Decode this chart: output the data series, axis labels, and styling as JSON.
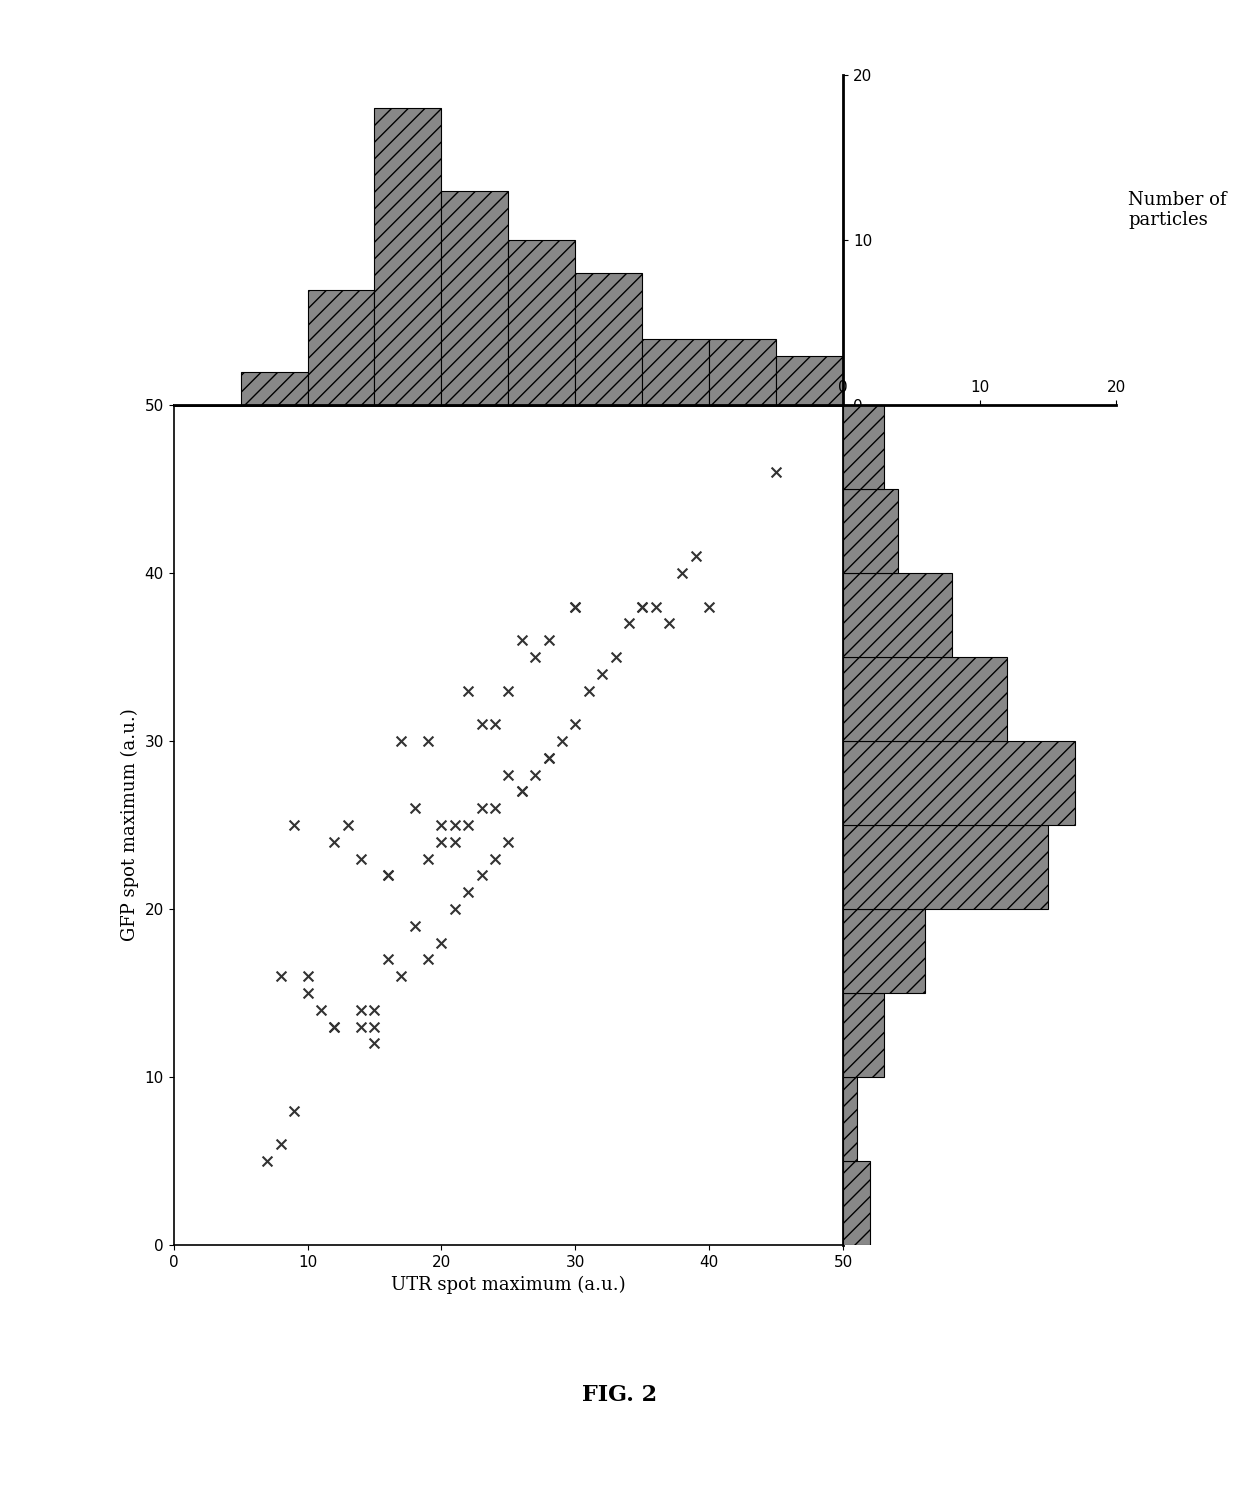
{
  "title": "FIG. 2",
  "xlabel": "UTR spot maximum (a.u.)",
  "ylabel": "GFP spot maximum (a.u.)",
  "hist_label": "Number of\nparticles",
  "scatter_x": [
    7,
    8,
    9,
    9,
    10,
    11,
    12,
    12,
    13,
    14,
    14,
    15,
    15,
    16,
    16,
    17,
    17,
    18,
    18,
    19,
    19,
    20,
    20,
    21,
    21,
    22,
    22,
    22,
    23,
    23,
    24,
    24,
    25,
    25,
    26,
    26,
    27,
    27,
    28,
    28,
    29,
    30,
    30,
    31,
    32,
    33,
    34,
    35,
    36,
    37,
    38,
    39,
    40,
    45,
    8,
    10,
    12,
    14,
    15,
    16,
    19,
    20,
    21,
    23,
    24,
    25,
    26,
    28,
    30,
    35
  ],
  "scatter_y": [
    5,
    16,
    8,
    25,
    15,
    14,
    13,
    24,
    25,
    13,
    23,
    12,
    14,
    17,
    22,
    16,
    30,
    19,
    26,
    17,
    30,
    18,
    25,
    20,
    25,
    21,
    25,
    33,
    22,
    31,
    23,
    31,
    24,
    33,
    27,
    36,
    28,
    35,
    29,
    36,
    30,
    31,
    38,
    33,
    34,
    35,
    37,
    38,
    38,
    37,
    40,
    41,
    38,
    46,
    6,
    16,
    13,
    14,
    13,
    22,
    23,
    24,
    24,
    26,
    26,
    28,
    27,
    29,
    38,
    38
  ],
  "top_hist_bins": [
    0,
    5,
    10,
    15,
    20,
    25,
    30,
    35,
    40,
    45,
    50
  ],
  "top_hist_values": [
    0,
    2,
    7,
    18,
    13,
    10,
    8,
    4,
    4,
    3
  ],
  "right_hist_bins": [
    0,
    5,
    10,
    15,
    20,
    25,
    30,
    35,
    40,
    45,
    50
  ],
  "right_hist_values": [
    2,
    1,
    3,
    6,
    15,
    17,
    12,
    8,
    4,
    3
  ],
  "scatter_lim": [
    0,
    50
  ],
  "hist_lim": [
    0,
    20
  ],
  "hist_color": "#888888",
  "scatter_color": "#333333",
  "background_color": "#ffffff",
  "fig_width": 12.4,
  "fig_height": 15.0
}
